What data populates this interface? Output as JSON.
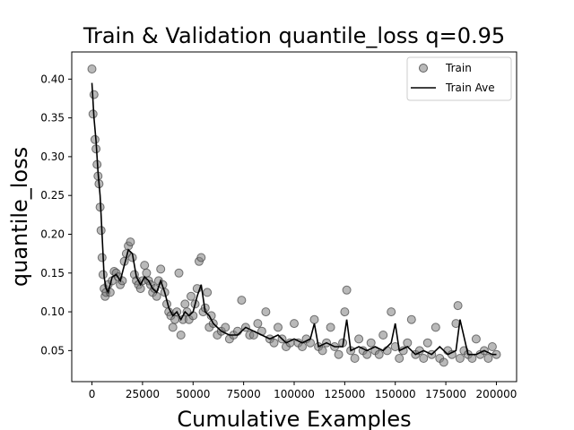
{
  "chart_data": {
    "type": "scatter",
    "title": "Train & Validation quantile_loss q=0.95",
    "xlabel": "Cumulative Examples",
    "ylabel": "quantile_loss",
    "xlim": [
      -10000,
      210000
    ],
    "ylim": [
      0.01,
      0.435
    ],
    "xticks": [
      0,
      25000,
      50000,
      75000,
      100000,
      125000,
      150000,
      175000,
      200000
    ],
    "xtick_labels": [
      "0",
      "25000",
      "50000",
      "75000",
      "100000",
      "125000",
      "150000",
      "175000",
      "200000"
    ],
    "yticks": [
      0.05,
      0.1,
      0.15,
      0.2,
      0.25,
      0.3,
      0.35,
      0.4
    ],
    "ytick_labels": [
      "0.05",
      "0.10",
      "0.15",
      "0.20",
      "0.25",
      "0.30",
      "0.35",
      "0.40"
    ],
    "grid": false,
    "legend_position": "top-right",
    "colors": {
      "train_points": "#808080",
      "train_ave": "#000000"
    },
    "series": [
      {
        "name": "Train",
        "kind": "scatter",
        "x": [
          0,
          500,
          1000,
          1500,
          2000,
          2500,
          3000,
          3500,
          4000,
          4500,
          5000,
          5500,
          6000,
          6500,
          7000,
          8000,
          9000,
          10000,
          11000,
          12000,
          13000,
          14000,
          15000,
          16000,
          17000,
          18000,
          19000,
          20000,
          21000,
          22000,
          23000,
          24000,
          25000,
          26000,
          27000,
          28000,
          29000,
          30000,
          31000,
          32000,
          33000,
          34000,
          35000,
          36000,
          37000,
          38000,
          39000,
          40000,
          41000,
          42000,
          43000,
          44000,
          45000,
          46000,
          47000,
          48000,
          49000,
          50000,
          51000,
          52000,
          53000,
          54000,
          55000,
          56000,
          57000,
          58000,
          59000,
          60000,
          62000,
          64000,
          66000,
          68000,
          70000,
          72000,
          74000,
          76000,
          78000,
          80000,
          82000,
          84000,
          86000,
          88000,
          90000,
          92000,
          94000,
          96000,
          98000,
          100000,
          102000,
          104000,
          106000,
          108000,
          110000,
          112000,
          114000,
          116000,
          118000,
          120000,
          122000,
          124000,
          125000,
          126000,
          128000,
          130000,
          132000,
          134000,
          136000,
          138000,
          140000,
          142000,
          144000,
          146000,
          148000,
          150000,
          152000,
          154000,
          156000,
          158000,
          160000,
          162000,
          164000,
          166000,
          168000,
          170000,
          172000,
          174000,
          176000,
          178000,
          180000,
          181000,
          182000,
          184000,
          186000,
          188000,
          190000,
          192000,
          194000,
          196000,
          198000,
          200000
        ],
        "y": [
          0.413,
          0.355,
          0.38,
          0.322,
          0.31,
          0.29,
          0.275,
          0.265,
          0.235,
          0.205,
          0.17,
          0.148,
          0.13,
          0.12,
          0.125,
          0.135,
          0.125,
          0.14,
          0.152,
          0.15,
          0.145,
          0.135,
          0.14,
          0.165,
          0.175,
          0.185,
          0.19,
          0.17,
          0.148,
          0.14,
          0.135,
          0.13,
          0.14,
          0.16,
          0.15,
          0.14,
          0.135,
          0.125,
          0.13,
          0.12,
          0.14,
          0.155,
          0.135,
          0.125,
          0.11,
          0.1,
          0.095,
          0.08,
          0.09,
          0.1,
          0.15,
          0.07,
          0.09,
          0.11,
          0.1,
          0.09,
          0.12,
          0.095,
          0.11,
          0.13,
          0.165,
          0.17,
          0.1,
          0.105,
          0.125,
          0.08,
          0.095,
          0.085,
          0.07,
          0.075,
          0.08,
          0.065,
          0.07,
          0.075,
          0.115,
          0.08,
          0.07,
          0.07,
          0.085,
          0.075,
          0.1,
          0.065,
          0.06,
          0.08,
          0.065,
          0.055,
          0.06,
          0.085,
          0.06,
          0.055,
          0.065,
          0.06,
          0.09,
          0.055,
          0.05,
          0.06,
          0.08,
          0.055,
          0.045,
          0.06,
          0.1,
          0.128,
          0.05,
          0.04,
          0.065,
          0.05,
          0.045,
          0.06,
          0.05,
          0.045,
          0.07,
          0.05,
          0.1,
          0.055,
          0.04,
          0.05,
          0.06,
          0.09,
          0.045,
          0.05,
          0.04,
          0.06,
          0.045,
          0.08,
          0.04,
          0.035,
          0.05,
          0.045,
          0.085,
          0.108,
          0.04,
          0.05,
          0.045,
          0.04,
          0.065,
          0.045,
          0.05,
          0.04,
          0.055,
          0.045
        ]
      },
      {
        "name": "Train Ave",
        "kind": "line",
        "x": [
          0,
          1000,
          2000,
          3000,
          4000,
          5000,
          6000,
          7000,
          8000,
          10000,
          12000,
          14000,
          16000,
          18000,
          20000,
          22000,
          24000,
          26000,
          28000,
          30000,
          32000,
          34000,
          36000,
          38000,
          40000,
          42000,
          44000,
          46000,
          48000,
          50000,
          52000,
          54000,
          56000,
          58000,
          60000,
          64000,
          68000,
          72000,
          76000,
          80000,
          84000,
          88000,
          92000,
          96000,
          100000,
          104000,
          108000,
          110000,
          112000,
          116000,
          120000,
          124000,
          126000,
          128000,
          132000,
          136000,
          140000,
          144000,
          148000,
          150000,
          152000,
          156000,
          160000,
          164000,
          168000,
          172000,
          176000,
          180000,
          182000,
          186000,
          190000,
          194000,
          198000,
          200000
        ],
        "y": [
          0.395,
          0.35,
          0.32,
          0.28,
          0.25,
          0.2,
          0.145,
          0.13,
          0.125,
          0.145,
          0.148,
          0.14,
          0.16,
          0.18,
          0.175,
          0.145,
          0.135,
          0.145,
          0.14,
          0.13,
          0.125,
          0.14,
          0.125,
          0.105,
          0.095,
          0.1,
          0.09,
          0.1,
          0.095,
          0.1,
          0.12,
          0.135,
          0.1,
          0.095,
          0.085,
          0.075,
          0.07,
          0.07,
          0.08,
          0.075,
          0.07,
          0.065,
          0.07,
          0.06,
          0.065,
          0.06,
          0.065,
          0.085,
          0.055,
          0.06,
          0.055,
          0.055,
          0.09,
          0.05,
          0.055,
          0.05,
          0.055,
          0.05,
          0.06,
          0.085,
          0.05,
          0.055,
          0.045,
          0.05,
          0.045,
          0.055,
          0.045,
          0.05,
          0.09,
          0.045,
          0.045,
          0.05,
          0.045,
          0.045
        ]
      }
    ]
  }
}
